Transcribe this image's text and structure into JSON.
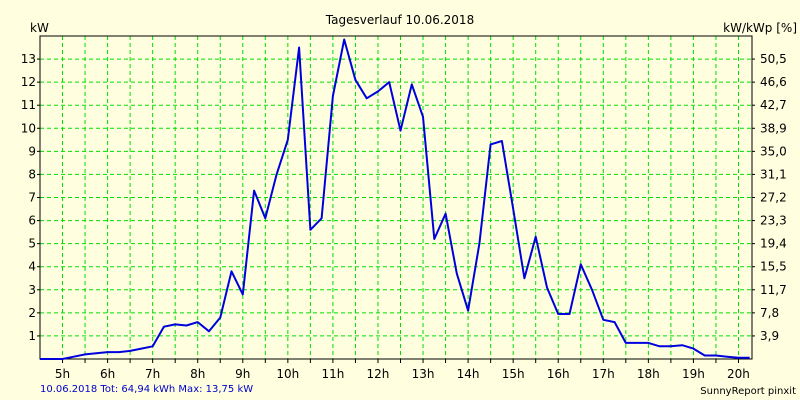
{
  "chart_data": {
    "type": "line",
    "title": "Tagesverlauf 10.06.2018",
    "ylabel_left": "kW",
    "ylabel_right": "kW/kWp [%]",
    "x_ticks": [
      "5h",
      "6h",
      "7h",
      "8h",
      "9h",
      "10h",
      "11h",
      "12h",
      "13h",
      "14h",
      "15h",
      "16h",
      "17h",
      "18h",
      "19h",
      "20h"
    ],
    "y_ticks_left": [
      "1",
      "2",
      "3",
      "4",
      "5",
      "6",
      "7",
      "8",
      "9",
      "10",
      "11",
      "12",
      "13"
    ],
    "y_ticks_right": [
      "3,9",
      "7,8",
      "11,7",
      "15,5",
      "19,4",
      "23,3",
      "27,2",
      "31,1",
      "35,0",
      "38,9",
      "42,7",
      "46,6",
      "50,5"
    ],
    "xlim": [
      4.5,
      20.3
    ],
    "ylim": [
      0,
      14
    ],
    "grid": true,
    "line_color": "#0000dd",
    "grid_color": "#00dd00",
    "background_color": "#ffffe0",
    "series": [
      {
        "x": [
          4.5,
          4.75,
          5.0,
          5.25,
          5.5,
          5.75,
          6.0,
          6.25,
          6.5,
          6.75,
          7.0,
          7.25,
          7.5,
          7.75,
          8.0,
          8.25,
          8.5,
          8.75,
          9.0,
          9.25,
          9.5,
          9.75,
          10.0,
          10.25,
          10.5,
          10.75,
          11.0,
          11.25,
          11.5,
          11.75,
          12.0,
          12.25,
          12.5,
          12.75,
          13.0,
          13.25,
          13.5,
          13.75,
          14.0,
          14.25,
          14.5,
          14.75,
          15.0,
          15.25,
          15.5,
          15.75,
          16.0,
          16.25,
          16.5,
          16.75,
          17.0,
          17.25,
          17.5,
          17.75,
          18.0,
          18.25,
          18.5,
          18.75,
          19.0,
          19.25,
          19.5,
          19.75,
          20.0,
          20.25
        ],
        "y": [
          0.0,
          0.0,
          0.0,
          0.1,
          0.2,
          0.25,
          0.3,
          0.3,
          0.35,
          0.45,
          0.55,
          1.4,
          1.5,
          1.45,
          1.6,
          1.2,
          1.8,
          3.8,
          2.8,
          7.3,
          6.1,
          8.0,
          9.5,
          13.5,
          5.6,
          6.1,
          11.4,
          13.85,
          12.1,
          11.3,
          11.6,
          12.0,
          9.9,
          11.9,
          10.5,
          5.2,
          6.3,
          3.7,
          2.1,
          5.0,
          9.3,
          9.45,
          6.5,
          3.5,
          5.3,
          3.1,
          1.95,
          1.95,
          4.1,
          3.0,
          1.7,
          1.6,
          0.7,
          0.7,
          0.7,
          0.55,
          0.55,
          0.6,
          0.45,
          0.15,
          0.15,
          0.1,
          0.05,
          0.05
        ]
      }
    ]
  },
  "footer": {
    "left": "10.06.2018 Tot: 64,94 kWh Max: 13,75 kW",
    "right": "SunnyReport pinxit"
  }
}
